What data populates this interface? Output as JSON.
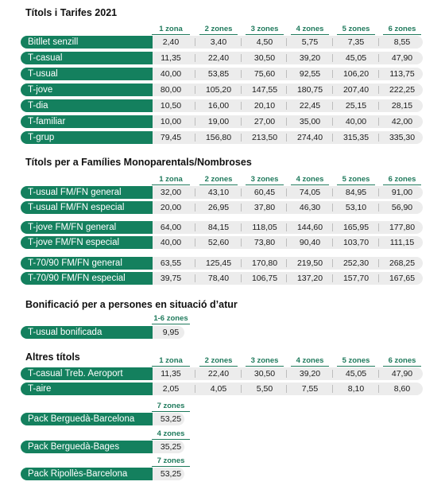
{
  "zone_headers": [
    "1 zona",
    "2 zones",
    "3 zones",
    "4 zones",
    "5 zones",
    "6 zones"
  ],
  "sections": {
    "tarifes": {
      "title": "Títols i Tarifes 2021",
      "rows": [
        {
          "label": "Bitllet senzill",
          "values": [
            "2,40",
            "3,40",
            "4,50",
            "5,75",
            "7,35",
            "8,55"
          ]
        },
        {
          "label": "T-casual",
          "values": [
            "11,35",
            "22,40",
            "30,50",
            "39,20",
            "45,05",
            "47,90"
          ]
        },
        {
          "label": "T-usual",
          "values": [
            "40,00",
            "53,85",
            "75,60",
            "92,55",
            "106,20",
            "113,75"
          ]
        },
        {
          "label": "T-jove",
          "values": [
            "80,00",
            "105,20",
            "147,55",
            "180,75",
            "207,40",
            "222,25"
          ]
        },
        {
          "label": "T-dia",
          "values": [
            "10,50",
            "16,00",
            "20,10",
            "22,45",
            "25,15",
            "28,15"
          ]
        },
        {
          "label": "T-familiar",
          "values": [
            "10,00",
            "19,00",
            "27,00",
            "35,00",
            "40,00",
            "42,00"
          ]
        },
        {
          "label": "T-grup",
          "values": [
            "79,45",
            "156,80",
            "213,50",
            "274,40",
            "315,35",
            "335,30"
          ]
        }
      ]
    },
    "families": {
      "title": "Títols per a Famílies Monoparentals/Nombroses",
      "rows": [
        {
          "label": "T-usual FM/FN general",
          "values": [
            "32,00",
            "43,10",
            "60,45",
            "74,05",
            "84,95",
            "91,00"
          ]
        },
        {
          "label": "T-usual FM/FN especial",
          "values": [
            "20,00",
            "26,95",
            "37,80",
            "46,30",
            "53,10",
            "56,90"
          ]
        },
        {
          "label": "T-jove FM/FN general",
          "values": [
            "64,00",
            "84,15",
            "118,05",
            "144,60",
            "165,95",
            "177,80"
          ]
        },
        {
          "label": "T-jove FM/FN especial",
          "values": [
            "40,00",
            "52,60",
            "73,80",
            "90,40",
            "103,70",
            "111,15"
          ]
        },
        {
          "label": "T-70/90 FM/FN general",
          "values": [
            "63,55",
            "125,45",
            "170,80",
            "219,50",
            "252,30",
            "268,25"
          ]
        },
        {
          "label": "T-70/90 FM/FN especial",
          "values": [
            "39,75",
            "78,40",
            "106,75",
            "137,20",
            "157,70",
            "167,65"
          ]
        }
      ]
    },
    "atur": {
      "title": "Bonificació per a persones en situació d’atur",
      "header": "1-6 zones",
      "rows": [
        {
          "label": "T-usual bonificada",
          "values": [
            "9,95"
          ]
        }
      ]
    },
    "altres": {
      "title": "Altres títols",
      "rows": [
        {
          "label": "T-casual Treb. Aeroport",
          "values": [
            "11,35",
            "22,40",
            "30,50",
            "39,20",
            "45,05",
            "47,90"
          ]
        },
        {
          "label": "T-aire",
          "values": [
            "2,05",
            "4,05",
            "5,50",
            "7,55",
            "8,10",
            "8,60"
          ]
        }
      ],
      "packs": [
        {
          "header": "7 zones",
          "label": "Pack Berguedà-Barcelona",
          "value": "53,25"
        },
        {
          "header": "4 zones",
          "label": "Pack Berguedà-Bages",
          "value": "35,25"
        },
        {
          "header": "7 zones",
          "label": "Pack Ripollès-Barcelona",
          "value": "53,25"
        }
      ]
    }
  }
}
